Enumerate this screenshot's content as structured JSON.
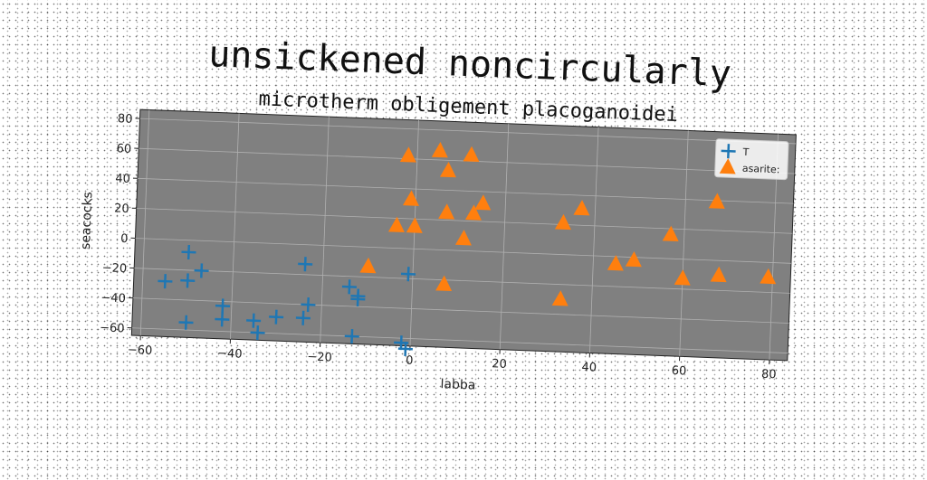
{
  "chart_data": {
    "type": "scatter",
    "title": "unsickened noncircularly",
    "subtitle": "microtherm obligement placoganoidei",
    "xlabel": "labba",
    "ylabel": "seacocks",
    "xlim": [
      -62,
      84
    ],
    "ylim": [
      -65,
      86
    ],
    "xticks": [
      -60,
      -40,
      -20,
      0,
      20,
      40,
      60,
      80
    ],
    "yticks": [
      -60,
      -40,
      -20,
      0,
      20,
      40,
      60,
      80
    ],
    "grid": true,
    "legend_position": "top-right",
    "background_color": "#808080",
    "series": [
      {
        "name": "T",
        "marker": "plus",
        "color": "#1f77b4",
        "points": [
          [
            -50,
            -8
          ],
          [
            -47,
            -20
          ],
          [
            -50,
            -27
          ],
          [
            -55,
            -28
          ],
          [
            -50,
            -55
          ],
          [
            -42,
            -43
          ],
          [
            -42,
            -52
          ],
          [
            -35,
            -52
          ],
          [
            -34,
            -60
          ],
          [
            -30,
            -49
          ],
          [
            -24,
            -49
          ],
          [
            -23,
            -40
          ],
          [
            -24,
            -13
          ],
          [
            -14,
            -27
          ],
          [
            -12,
            -33
          ],
          [
            -12,
            -35
          ],
          [
            -13,
            -60
          ],
          [
            -1,
            -17
          ],
          [
            -2,
            -63
          ],
          [
            -1,
            -67
          ]
        ]
      },
      {
        "name": "asarite:",
        "marker": "triangle",
        "color": "#ff7f0e",
        "points": [
          [
            -2,
            62
          ],
          [
            5,
            66
          ],
          [
            12,
            64
          ],
          [
            7,
            53
          ],
          [
            -1,
            33
          ],
          [
            7,
            25
          ],
          [
            13,
            25
          ],
          [
            15,
            32
          ],
          [
            -4,
            15
          ],
          [
            0,
            15
          ],
          [
            11,
            8
          ],
          [
            -10,
            -13
          ],
          [
            7,
            -23
          ],
          [
            33,
            21
          ],
          [
            37,
            31
          ],
          [
            57,
            16
          ],
          [
            67,
            39
          ],
          [
            45,
            -5
          ],
          [
            49,
            -2
          ],
          [
            60,
            -13
          ],
          [
            68,
            -10
          ],
          [
            79,
            -10
          ],
          [
            33,
            -30
          ]
        ]
      }
    ]
  }
}
